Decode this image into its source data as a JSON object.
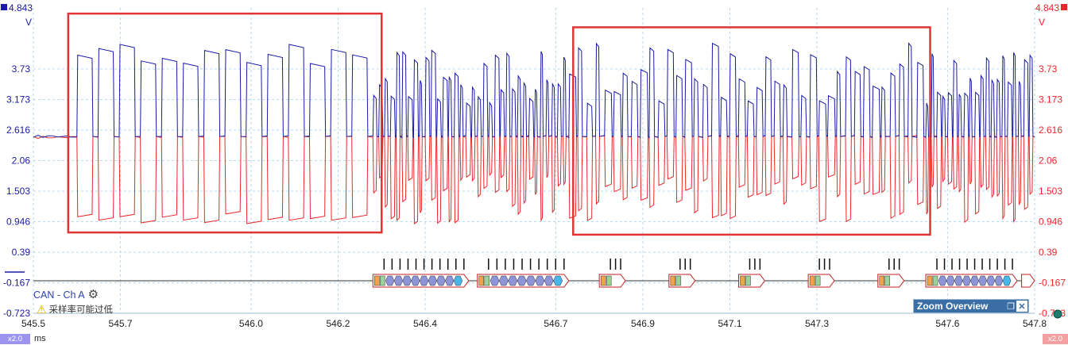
{
  "axes": {
    "left_top": "4.843",
    "left_unit": "V",
    "right_top": "4.843",
    "right_unit": "V",
    "y_ticks": [
      "3.73",
      "3.173",
      "2.616",
      "2.06",
      "1.503",
      "0.946",
      "0.39",
      "-0.167",
      "-0.723"
    ],
    "x_ticks": [
      "545.5",
      "545.7",
      "546.0",
      "546.2",
      "546.4",
      "546.7",
      "546.9",
      "547.1",
      "547.3",
      "547.6",
      "547.8"
    ],
    "x_unit": "ms"
  },
  "decoder": {
    "label": "CAN - Ch A",
    "warning": "采样率可能过低"
  },
  "zoom_overview": {
    "title": "Zoom Overview",
    "restore_icon": "restore-icon",
    "close_icon": "close-icon"
  },
  "badges": {
    "left": "x2.0",
    "right": "x2.0"
  },
  "colors": {
    "channel_a": "#1a1aa6",
    "channel_b": "#e8282c",
    "grid": "#b9d9ec",
    "highlight": "#e23434",
    "packet_fill": "#8e94d8"
  },
  "chart_data": {
    "type": "line",
    "x_range": [
      545.5,
      547.8
    ],
    "y_range": [
      -0.723,
      4.843
    ],
    "x_unit": "ms",
    "y_unit": "V",
    "series": [
      {
        "color": "#1a1aa6",
        "idle_level": 2.5,
        "high_level": 4.2
      },
      {
        "color": "#e8282c",
        "idle_level": 2.5,
        "low_level": 0.9
      }
    ],
    "bursts": [
      {
        "start": 545.6,
        "end": 546.28,
        "pulses": 14
      },
      {
        "start": 546.28,
        "end": 546.52,
        "pulses": 18
      },
      {
        "start": 546.52,
        "end": 546.73,
        "pulses": 16
      },
      {
        "start": 546.73,
        "end": 547.55,
        "pulses": 40
      },
      {
        "start": 547.55,
        "end": 547.8,
        "pulses": 20
      }
    ],
    "highlight_regions": [
      {
        "x_start": 545.58,
        "x_end": 546.3,
        "y_top": 4.74,
        "y_bottom": 0.75
      },
      {
        "x_start": 546.74,
        "x_end": 547.56,
        "y_top": 4.49,
        "y_bottom": 0.71
      }
    ],
    "packets": [
      {
        "x_start": 546.28,
        "x_end": 546.5,
        "bits": 11
      },
      {
        "x_start": 546.52,
        "x_end": 546.73,
        "bits": 10
      },
      {
        "x_start": 546.8,
        "x_end": 546.86,
        "bits": 2
      },
      {
        "x_start": 546.96,
        "x_end": 547.02,
        "bits": 2
      },
      {
        "x_start": 547.12,
        "x_end": 547.18,
        "bits": 2
      },
      {
        "x_start": 547.28,
        "x_end": 547.34,
        "bits": 2
      },
      {
        "x_start": 547.44,
        "x_end": 547.5,
        "bits": 2
      },
      {
        "x_start": 547.55,
        "x_end": 547.76,
        "bits": 11
      },
      {
        "x_start": 547.77,
        "x_end": 547.8,
        "bits": 0
      }
    ]
  }
}
